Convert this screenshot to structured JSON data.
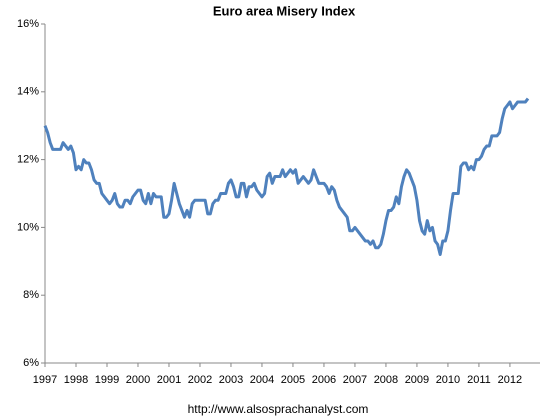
{
  "chart_data": {
    "type": "line",
    "title": "Euro area Misery Index",
    "source": "http://www.alsosprachanalyst.com",
    "categories": [
      "1997",
      null,
      null,
      null,
      null,
      null,
      null,
      null,
      null,
      null,
      null,
      null,
      "1998",
      null,
      null,
      null,
      null,
      null,
      null,
      null,
      null,
      null,
      null,
      null,
      "1999",
      null,
      null,
      null,
      null,
      null,
      null,
      null,
      null,
      null,
      null,
      null,
      "2000",
      null,
      null,
      null,
      null,
      null,
      null,
      null,
      null,
      null,
      null,
      null,
      "2001",
      null,
      null,
      null,
      null,
      null,
      null,
      null,
      null,
      null,
      null,
      null,
      "2002",
      null,
      null,
      null,
      null,
      null,
      null,
      null,
      null,
      null,
      null,
      null,
      "2003",
      null,
      null,
      null,
      null,
      null,
      null,
      null,
      null,
      null,
      null,
      null,
      "2004",
      null,
      null,
      null,
      null,
      null,
      null,
      null,
      null,
      null,
      null,
      null,
      "2005",
      null,
      null,
      null,
      null,
      null,
      null,
      null,
      null,
      null,
      null,
      null,
      "2006",
      null,
      null,
      null,
      null,
      null,
      null,
      null,
      null,
      null,
      null,
      null,
      "2007",
      null,
      null,
      null,
      null,
      null,
      null,
      null,
      null,
      null,
      null,
      null,
      "2008",
      null,
      null,
      null,
      null,
      null,
      null,
      null,
      null,
      null,
      null,
      null,
      "2009",
      null,
      null,
      null,
      null,
      null,
      null,
      null,
      null,
      null,
      null,
      null,
      "2010",
      null,
      null,
      null,
      null,
      null,
      null,
      null,
      null,
      null,
      null,
      null,
      "2011",
      null,
      null,
      null,
      null,
      null,
      null,
      null,
      null,
      null,
      null,
      null,
      "2012",
      null,
      null,
      null,
      null,
      null,
      null,
      null
    ],
    "series": [
      {
        "name": "Misery Index",
        "color": "#4f81bd",
        "values": [
          13.0,
          12.8,
          12.5,
          12.3,
          12.3,
          12.3,
          12.3,
          12.5,
          12.4,
          12.3,
          12.4,
          12.2,
          11.7,
          11.8,
          11.7,
          12.0,
          11.9,
          11.9,
          11.7,
          11.4,
          11.3,
          11.3,
          11.0,
          10.9,
          10.8,
          10.7,
          10.8,
          11.0,
          10.7,
          10.6,
          10.6,
          10.8,
          10.8,
          10.7,
          10.9,
          11.0,
          11.1,
          11.1,
          10.8,
          10.7,
          11.0,
          10.7,
          11.0,
          10.9,
          10.9,
          10.9,
          10.3,
          10.3,
          10.4,
          10.8,
          11.3,
          11.0,
          10.7,
          10.5,
          10.3,
          10.5,
          10.3,
          10.7,
          10.8,
          10.8,
          10.8,
          10.8,
          10.8,
          10.4,
          10.4,
          10.7,
          10.8,
          10.8,
          11.0,
          11.0,
          11.0,
          11.3,
          11.4,
          11.2,
          10.9,
          10.9,
          11.3,
          11.3,
          10.9,
          11.2,
          11.2,
          11.3,
          11.1,
          11.0,
          10.9,
          11.0,
          11.5,
          11.6,
          11.3,
          11.5,
          11.5,
          11.5,
          11.7,
          11.5,
          11.6,
          11.7,
          11.6,
          11.7,
          11.3,
          11.4,
          11.5,
          11.4,
          11.3,
          11.4,
          11.7,
          11.5,
          11.3,
          11.3,
          11.3,
          11.2,
          11.0,
          11.2,
          11.1,
          10.8,
          10.6,
          10.5,
          10.4,
          10.3,
          9.9,
          9.9,
          10.0,
          9.9,
          9.8,
          9.7,
          9.6,
          9.6,
          9.5,
          9.6,
          9.4,
          9.4,
          9.5,
          9.8,
          10.2,
          10.5,
          10.5,
          10.6,
          10.9,
          10.7,
          11.2,
          11.5,
          11.7,
          11.6,
          11.4,
          11.2,
          10.8,
          10.2,
          9.9,
          9.8,
          10.2,
          9.9,
          10.0,
          9.6,
          9.5,
          9.2,
          9.6,
          9.6,
          9.9,
          10.5,
          11.0,
          11.0,
          11.0,
          11.8,
          11.9,
          11.9,
          11.7,
          11.8,
          11.7,
          12.0,
          12.0,
          12.1,
          12.3,
          12.4,
          12.4,
          12.7,
          12.7,
          12.7,
          12.8,
          13.2,
          13.5,
          13.6,
          13.7,
          13.5,
          13.6,
          13.7,
          13.7,
          13.7,
          13.7,
          13.8
        ]
      }
    ],
    "ylim": [
      6,
      16
    ],
    "yticks": [
      {
        "value": 6,
        "label": "6%"
      },
      {
        "value": 8,
        "label": "8%"
      },
      {
        "value": 10,
        "label": "10%"
      },
      {
        "value": 12,
        "label": "12%"
      },
      {
        "value": 14,
        "label": "14%"
      },
      {
        "value": 16,
        "label": "16%"
      }
    ],
    "grid": false
  }
}
